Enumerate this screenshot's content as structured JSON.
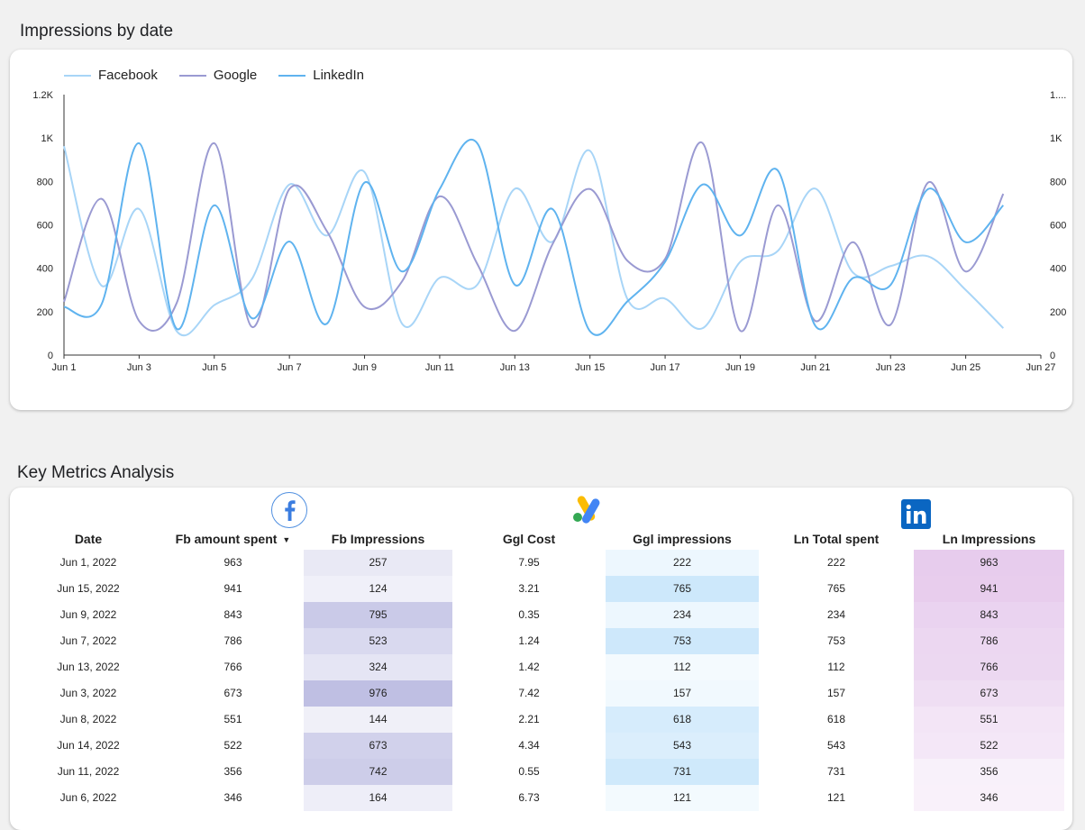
{
  "chart_section_title": "Impressions by date",
  "table_section_title": "Key Metrics Analysis",
  "chart_data": {
    "type": "line",
    "x": [
      "Jun 1",
      "Jun 2",
      "Jun 3",
      "Jun 4",
      "Jun 5",
      "Jun 6",
      "Jun 7",
      "Jun 8",
      "Jun 9",
      "Jun 10",
      "Jun 11",
      "Jun 12",
      "Jun 13",
      "Jun 14",
      "Jun 15",
      "Jun 16",
      "Jun 17",
      "Jun 18",
      "Jun 19",
      "Jun 20",
      "Jun 21",
      "Jun 22",
      "Jun 23",
      "Jun 24",
      "Jun 25",
      "Jun 26"
    ],
    "x_tick_labels": [
      "Jun 1",
      "Jun 3",
      "Jun 5",
      "Jun 7",
      "Jun 9",
      "Jun 11",
      "Jun 13",
      "Jun 15",
      "Jun 17",
      "Jun 19",
      "Jun 21",
      "Jun 23",
      "Jun 25",
      "Jun 27"
    ],
    "y_tick_labels_left": [
      "0",
      "200",
      "400",
      "600",
      "800",
      "1K",
      "1.2K"
    ],
    "y_tick_labels_right": [
      "0",
      "200",
      "400",
      "600",
      "800",
      "1K",
      "1...."
    ],
    "ylim": [
      0,
      1200
    ],
    "series": [
      {
        "name": "Facebook",
        "color": "#a8d5f7",
        "values": [
          963,
          320,
          673,
          110,
          230,
          350,
          786,
          551,
          843,
          144,
          356,
          324,
          766,
          522,
          941,
          257,
          260,
          124,
          430,
          480,
          767,
          380,
          410,
          455,
          300,
          124
        ]
      },
      {
        "name": "Google",
        "color": "#9a9ad2",
        "values": [
          245,
          720,
          157,
          240,
          976,
          130,
          765,
          570,
          222,
          340,
          731,
          420,
          112,
          510,
          765,
          434,
          443,
          976,
          112,
          690,
          157,
          520,
          140,
          795,
          385,
          743
        ]
      },
      {
        "name": "LinkedIn",
        "color": "#5fb3ef",
        "values": [
          222,
          234,
          976,
          121,
          690,
          170,
          523,
          145,
          795,
          385,
          765,
          976,
          324,
          673,
          110,
          248,
          430,
          786,
          551,
          850,
          134,
          355,
          323,
          765,
          520,
          690
        ]
      }
    ],
    "grid": false,
    "legend_position": "top-left"
  },
  "icons": {
    "facebook": "facebook-logo-icon",
    "google_ads": "google-ads-logo-icon",
    "linkedin": "linkedin-logo-icon"
  },
  "table": {
    "columns": [
      "Date",
      "Fb amount spent",
      "Fb Impressions",
      "Ggl Cost",
      "Ggl impressions",
      "Ln Total spent",
      "Ln Impressions"
    ],
    "sorted_column": "Fb amount spent",
    "rows": [
      {
        "date": "Jun 1, 2022",
        "fb_spent": "963",
        "fb_impr": "257",
        "ggl_cost": "7.95",
        "ggl_impr": "222",
        "ln_spent": "222",
        "ln_impr": "963"
      },
      {
        "date": "Jun 15, 2022",
        "fb_spent": "941",
        "fb_impr": "124",
        "ggl_cost": "3.21",
        "ggl_impr": "765",
        "ln_spent": "765",
        "ln_impr": "941"
      },
      {
        "date": "Jun 9, 2022",
        "fb_spent": "843",
        "fb_impr": "795",
        "ggl_cost": "0.35",
        "ggl_impr": "234",
        "ln_spent": "234",
        "ln_impr": "843"
      },
      {
        "date": "Jun 7, 2022",
        "fb_spent": "786",
        "fb_impr": "523",
        "ggl_cost": "1.24",
        "ggl_impr": "753",
        "ln_spent": "753",
        "ln_impr": "786"
      },
      {
        "date": "Jun 13, 2022",
        "fb_spent": "766",
        "fb_impr": "324",
        "ggl_cost": "1.42",
        "ggl_impr": "112",
        "ln_spent": "112",
        "ln_impr": "766"
      },
      {
        "date": "Jun 3, 2022",
        "fb_spent": "673",
        "fb_impr": "976",
        "ggl_cost": "7.42",
        "ggl_impr": "157",
        "ln_spent": "157",
        "ln_impr": "673"
      },
      {
        "date": "Jun 8, 2022",
        "fb_spent": "551",
        "fb_impr": "144",
        "ggl_cost": "2.21",
        "ggl_impr": "618",
        "ln_spent": "618",
        "ln_impr": "551"
      },
      {
        "date": "Jun 14, 2022",
        "fb_spent": "522",
        "fb_impr": "673",
        "ggl_cost": "4.34",
        "ggl_impr": "543",
        "ln_spent": "543",
        "ln_impr": "522"
      },
      {
        "date": "Jun 11, 2022",
        "fb_spent": "356",
        "fb_impr": "742",
        "ggl_cost": "0.55",
        "ggl_impr": "731",
        "ln_spent": "731",
        "ln_impr": "356"
      },
      {
        "date": "Jun 6, 2022",
        "fb_spent": "346",
        "fb_impr": "164",
        "ggl_cost": "6.73",
        "ggl_impr": "121",
        "ln_spent": "121",
        "ln_impr": "346"
      }
    ]
  },
  "colors": {
    "fb_heat": "#5c5cb8",
    "ggl_heat": "#7ec3f5",
    "ln_heat": "#c07ad0"
  }
}
